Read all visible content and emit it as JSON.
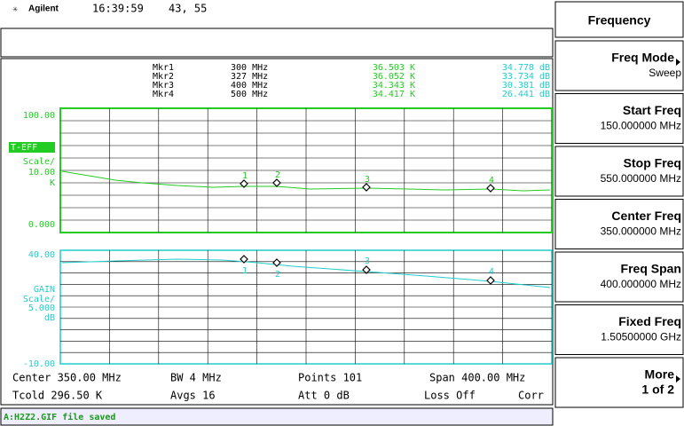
{
  "header": {
    "brand": "Agilent",
    "time": "16:39:59",
    "coords": "43, 55"
  },
  "marker_table": [
    {
      "name": "Mkr1",
      "freq": "300 MHz",
      "teff": "36.503 K",
      "gain": "34.778 dB"
    },
    {
      "name": "Mkr2",
      "freq": "327 MHz",
      "teff": "36.052 K",
      "gain": "33.734 dB"
    },
    {
      "name": "Mkr3",
      "freq": "400 MHz",
      "teff": "34.343 K",
      "gain": "30.381 dB"
    },
    {
      "name": "Mkr4",
      "freq": "500 MHz",
      "teff": "34.417 K",
      "gain": "26.441 dB"
    }
  ],
  "upper_graph": {
    "top": "100.00",
    "measurement": "T-EFF",
    "scale_label": "Scale/",
    "scale": "10.00",
    "unit": "K",
    "bottom": "0.000",
    "markers": [
      "1",
      "2",
      "3",
      "4"
    ]
  },
  "lower_graph": {
    "top": "40.00",
    "measurement": "GAIN",
    "scale_label": "Scale/",
    "scale": "5.000",
    "unit": "dB",
    "bottom": "-10.00",
    "markers": [
      "1",
      "2",
      "3",
      "4"
    ]
  },
  "info": {
    "center": "Center 350.00 MHz",
    "bw": "BW 4 MHz",
    "points": "Points 101",
    "span": "Span 400.00 MHz",
    "tcold": "Tcold 296.50 K",
    "avgs": "Avgs 16",
    "att": "Att 0 dB",
    "loss": "Loss Off",
    "corr": "Corr"
  },
  "menu": {
    "title": "Frequency",
    "keys": [
      {
        "label": "Freq Mode",
        "value": "Sweep"
      },
      {
        "label": "Start Freq",
        "value": "150.000000 MHz"
      },
      {
        "label": "Stop Freq",
        "value": "550.000000 MHz"
      },
      {
        "label": "Center Freq",
        "value": "350.000000 MHz"
      },
      {
        "label": "Freq Span",
        "value": "400.000000 MHz"
      },
      {
        "label": "Fixed Freq",
        "value": "1.50500000 GHz"
      },
      {
        "label": "More",
        "value": "1 of 2"
      }
    ]
  },
  "status": "A:H2Z2.GIF file saved"
}
